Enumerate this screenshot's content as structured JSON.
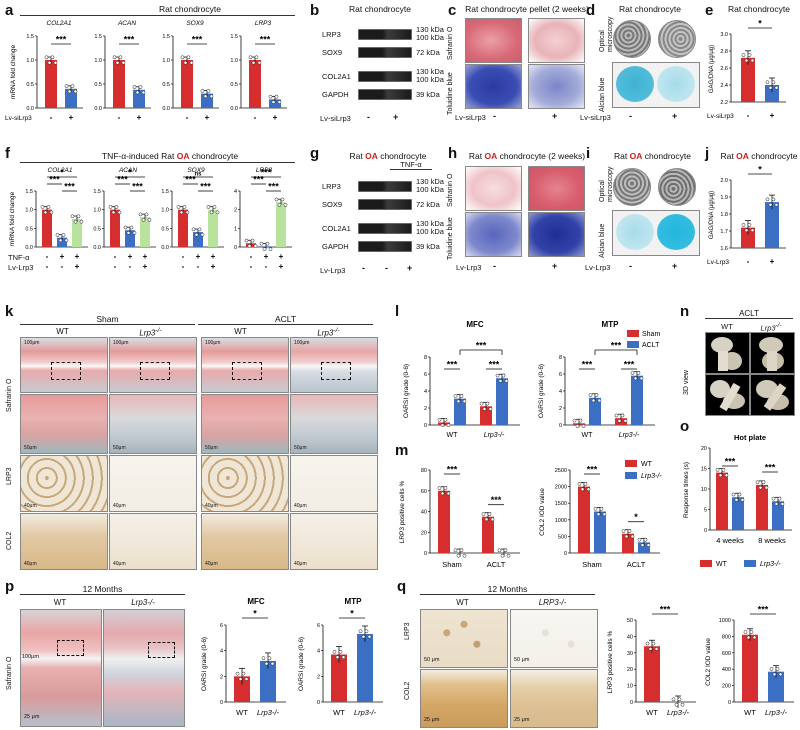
{
  "panels": {
    "a": {
      "letter": "a",
      "title": "Rat chondrocyte",
      "ylabel": "mRNA fold change",
      "xlabel": "Lv-siLrp3",
      "ticks": [
        "-",
        "+"
      ],
      "genes": [
        {
          "name": "COL2A1",
          "ymax": 1.5,
          "yt": [
            "0.0",
            "0.5",
            "1.0",
            "1.5"
          ],
          "sig": "***",
          "vals": [
            1.0,
            0.4
          ]
        },
        {
          "name": "ACAN",
          "ymax": 1.5,
          "yt": [
            "0.0",
            "0.5",
            "1.0",
            "1.5"
          ],
          "sig": "***",
          "vals": [
            1.0,
            0.38
          ]
        },
        {
          "name": "SOX9",
          "ymax": 1.5,
          "yt": [
            "0.0",
            "0.5",
            "1.0",
            "1.5"
          ],
          "sig": "***",
          "vals": [
            1.0,
            0.3
          ]
        },
        {
          "name": "LRP3",
          "ymax": 1.5,
          "yt": [
            "0.0",
            "0.5",
            "1.0",
            "1.5"
          ],
          "sig": "***",
          "vals": [
            1.0,
            0.18
          ]
        }
      ]
    },
    "b": {
      "letter": "b",
      "title": "Rat chondrocyte",
      "xlabel": "Lv-siLrp3",
      "ticks": [
        "-",
        "+"
      ],
      "rows": [
        {
          "name": "LRP3",
          "kda": "130 kDa\n100 kDa"
        },
        {
          "name": "SOX9",
          "kda": "72 kDa"
        },
        {
          "name": "COL2A1",
          "kda": "130 kDa\n100 kDa"
        },
        {
          "name": "GAPDH",
          "kda": "39 kDa"
        }
      ]
    },
    "c": {
      "letter": "c",
      "title": "Rat chondrocyte pellet (2 weeks)",
      "stain1": "Safranin O",
      "stain2": "Toluidine blue",
      "xlabel": "Lv-siLrp3",
      "ticks": [
        "-",
        "+"
      ]
    },
    "d": {
      "letter": "d",
      "title": "Rat chondrocyte",
      "row1": "Optical microscopy",
      "row2": "Alcian blue",
      "xlabel": "Lv-siLrp3",
      "ticks": [
        "-",
        "+"
      ]
    },
    "e": {
      "letter": "e",
      "title": "Rat chondrocyte",
      "ylabel": "GAG/DNA (μg/μg)",
      "xlabel": "Lv-siLrp3",
      "ticks": [
        "-",
        "+"
      ],
      "sig": "*",
      "yt": [
        "2.2",
        "2.4",
        "2.6",
        "2.8",
        "3.0"
      ],
      "vals": [
        2.72,
        2.4
      ]
    },
    "f": {
      "letter": "f",
      "title": "TNF-α-induced Rat OA chondrocyte",
      "ylabel": "mRNA fold change",
      "row1": "TNF-α",
      "row2": "Lv-Lrp3",
      "t1": [
        "-",
        "+",
        "+"
      ],
      "t2": [
        "-",
        "-",
        "+"
      ],
      "genes": [
        {
          "name": "COL2A1",
          "sigs": [
            "*",
            "***",
            "***"
          ],
          "vals": [
            1.0,
            0.25,
            0.75
          ]
        },
        {
          "name": "ACAN",
          "sigs": [
            "*",
            "***",
            "***"
          ],
          "vals": [
            1.0,
            0.45,
            0.8
          ]
        },
        {
          "name": "SOX9",
          "sigs": [
            "ns",
            "***",
            "***"
          ],
          "vals": [
            1.0,
            0.4,
            1.0
          ]
        },
        {
          "name": "LRP3",
          "sigs": [
            "***",
            "***",
            "***"
          ],
          "vals": [
            0.3,
            0.05,
            3.6
          ]
        }
      ]
    },
    "g": {
      "letter": "g",
      "title": "Rat OA chondrocyte",
      "tnf": "TNF-α",
      "xlabel": "Lv-Lrp3",
      "ticks": [
        "-",
        "-",
        "+"
      ],
      "rows": [
        {
          "name": "LRP3",
          "kda": "130 kDa\n100 kDa"
        },
        {
          "name": "SOX9",
          "kda": "72 kDa"
        },
        {
          "name": "COL2A1",
          "kda": "130 kDa\n100 kDa"
        },
        {
          "name": "GAPDH",
          "kda": "39 kDa"
        }
      ]
    },
    "h": {
      "letter": "h",
      "title": "Rat OA chondrocyte (2 weeks)",
      "stain1": "Safranin O",
      "stain2": "Toluidine blue",
      "xlabel": "Lv-Lrp3",
      "ticks": [
        "-",
        "+"
      ]
    },
    "i": {
      "letter": "i",
      "title": "Rat OA chondrocyte",
      "row1": "Optical microscopy",
      "row2": "Alcian blue",
      "xlabel": "Lv-Lrp3",
      "ticks": [
        "-",
        "+"
      ]
    },
    "j": {
      "letter": "j",
      "title": "Rat OA chondrocyte",
      "ylabel": "GAG/DNA (μg/μg)",
      "xlabel": "Lv-Lrp3",
      "ticks": [
        "-",
        "+"
      ],
      "sig": "*",
      "yt": [
        "1.6",
        "1.7",
        "1.8",
        "1.9",
        "2.0"
      ],
      "vals": [
        1.72,
        1.87
      ]
    },
    "k": {
      "letter": "k",
      "sham": "Sham",
      "aclt": "ACLT",
      "wt": "WT",
      "ko": "Lrp3",
      "rows": [
        "Safranin O",
        "LRP3",
        "COL2"
      ],
      "scale": "100μm",
      "scale2": "50μm",
      "scale3": "40μm"
    },
    "l": {
      "letter": "l",
      "mfc": "MFC",
      "mtp": "MTP",
      "ylabel": "OARSI grade (0-6)",
      "legend": [
        "Sham",
        "ACLT"
      ],
      "xcats": [
        "WT",
        "Lrp3"
      ],
      "yt": [
        "0",
        "2",
        "4",
        "6",
        "8"
      ],
      "mfc_vals": [
        0.3,
        3.1,
        2.2,
        5.5
      ],
      "mtp_vals": [
        0.2,
        3.2,
        0.8,
        5.8
      ],
      "sig": "***"
    },
    "m": {
      "letter": "m",
      "ylabel1": "LRP3 positive cells %",
      "ylabel2": "COL2 IOD value",
      "legend": [
        "WT",
        "Lrp3"
      ],
      "xcats": [
        "Sham",
        "ACLT"
      ],
      "yt1": [
        "0",
        "20",
        "40",
        "60",
        "80"
      ],
      "yt2": [
        "0",
        "500",
        "1000",
        "1500",
        "2000",
        "2500"
      ],
      "lrp3": [
        60,
        0,
        35,
        0
      ],
      "col2": [
        2000,
        1250,
        580,
        320
      ],
      "sigs1": [
        "***",
        "***"
      ],
      "sigs2": [
        "***",
        "*"
      ]
    },
    "n": {
      "letter": "n",
      "title": "ACLT",
      "wt": "WT",
      "ko": "Lrp3",
      "side": "3D view"
    },
    "o": {
      "letter": "o",
      "title": "Hot plate",
      "ylabel": "Response times (s)",
      "xcats": [
        "4 weeks",
        "8 weeks"
      ],
      "legend": [
        "WT",
        "Lrp3"
      ],
      "yt": [
        "0",
        "5",
        "10",
        "15",
        "20"
      ],
      "vals": [
        14,
        8,
        11,
        7
      ],
      "sig": "***"
    },
    "p": {
      "letter": "p",
      "title": "12 Months",
      "wt": "WT",
      "ko": "Lrp3-/-",
      "stain": "Safranin O",
      "scale": "100μm",
      "scale2": "25 μm",
      "mfc": "MFC",
      "mtp": "MTP",
      "ylabel": "OARSI grade (0-6)",
      "xcats": [
        "WT",
        "Lrp3"
      ],
      "yt": [
        "0",
        "2",
        "4",
        "6"
      ],
      "mfc_vals": [
        2.0,
        3.2
      ],
      "mtp_vals": [
        3.7,
        5.3
      ],
      "sig": "*"
    },
    "q": {
      "letter": "q",
      "title": "12 Months",
      "wt": "WT",
      "ko": "LRP3-/-",
      "rows": [
        "LRP3",
        "COL2"
      ],
      "scale": "50 μm",
      "scale2": "25 μm",
      "ylabel1": "LRP3 positive cells %",
      "ylabel2": "COL2 IOD value",
      "xcats": [
        "WT",
        "Lrp3"
      ],
      "yt1": [
        "0",
        "10",
        "20",
        "30",
        "40",
        "50"
      ],
      "yt2": [
        "0",
        "200",
        "400",
        "600",
        "800",
        "1000"
      ],
      "lrp3": [
        34,
        0
      ],
      "col2": [
        820,
        370
      ],
      "sig": "***"
    }
  },
  "colors": {
    "red": "#d62e2e",
    "blue": "#3a6fc4",
    "green": "#b9e29c",
    "saf": "#e08c96",
    "tol": "#4f63b8"
  }
}
